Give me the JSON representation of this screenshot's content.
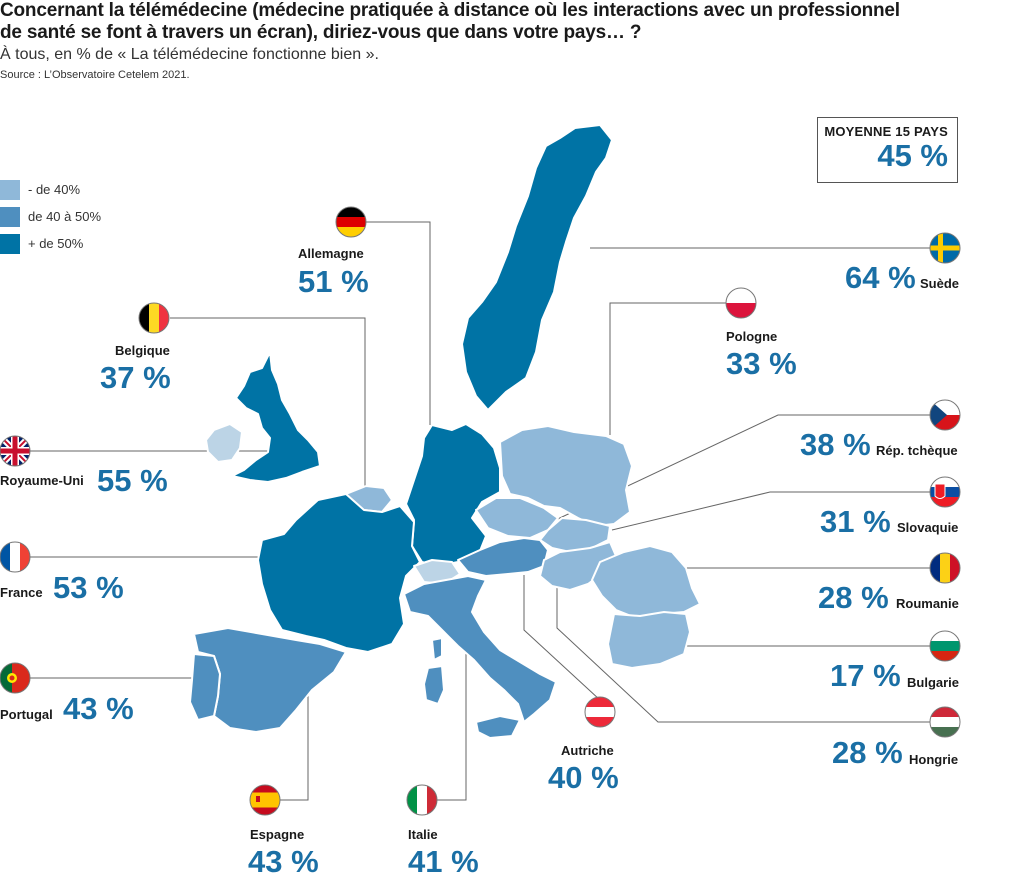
{
  "title_line1": "Concernant la télémédecine (médecine pratiquée à distance où les interactions avec un professionnel",
  "title_line2": "de santé se font à travers un écran), diriez-vous que dans votre pays… ?",
  "subtitle": "À tous, en % de « La télémédecine fonctionne bien ».",
  "source": "Source : L’Observatoire Cetelem 2021.",
  "legend": [
    {
      "label": "- de 40%",
      "color": "#8fb8d9"
    },
    {
      "label": "de 40 à 50%",
      "color": "#4f8fbf"
    },
    {
      "label": "+ de 50%",
      "color": "#0073a5"
    }
  ],
  "average": {
    "label": "MOYENNE 15 PAYS",
    "value": "45 %"
  },
  "countries": [
    {
      "name": "Allemagne",
      "value": 51,
      "display": "51 %",
      "flag": "germany"
    },
    {
      "name": "Belgique",
      "value": 37,
      "display": "37 %",
      "flag": "belgium"
    },
    {
      "name": "Royaume-Uni",
      "value": 55,
      "display": "55 %",
      "flag": "uk"
    },
    {
      "name": "France",
      "value": 53,
      "display": "53 %",
      "flag": "france"
    },
    {
      "name": "Portugal",
      "value": 43,
      "display": "43 %",
      "flag": "portugal"
    },
    {
      "name": "Espagne",
      "value": 43,
      "display": "43 %",
      "flag": "spain"
    },
    {
      "name": "Italie",
      "value": 41,
      "display": "41 %",
      "flag": "italy"
    },
    {
      "name": "Autriche",
      "value": 40,
      "display": "40 %",
      "flag": "austria"
    },
    {
      "name": "Suède",
      "value": 64,
      "display": "64 %",
      "flag": "sweden"
    },
    {
      "name": "Pologne",
      "value": 33,
      "display": "33 %",
      "flag": "poland"
    },
    {
      "name": "Rép. tchèque",
      "value": 38,
      "display": "38 %",
      "flag": "czech"
    },
    {
      "name": "Slovaquie",
      "value": 31,
      "display": "31 %",
      "flag": "slovakia"
    },
    {
      "name": "Roumanie",
      "value": 28,
      "display": "28 %",
      "flag": "romania"
    },
    {
      "name": "Bulgarie",
      "value": 17,
      "display": "17 %",
      "flag": "bulgaria"
    },
    {
      "name": "Hongrie",
      "value": 28,
      "display": "28 %",
      "flag": "hungary"
    }
  ]
}
